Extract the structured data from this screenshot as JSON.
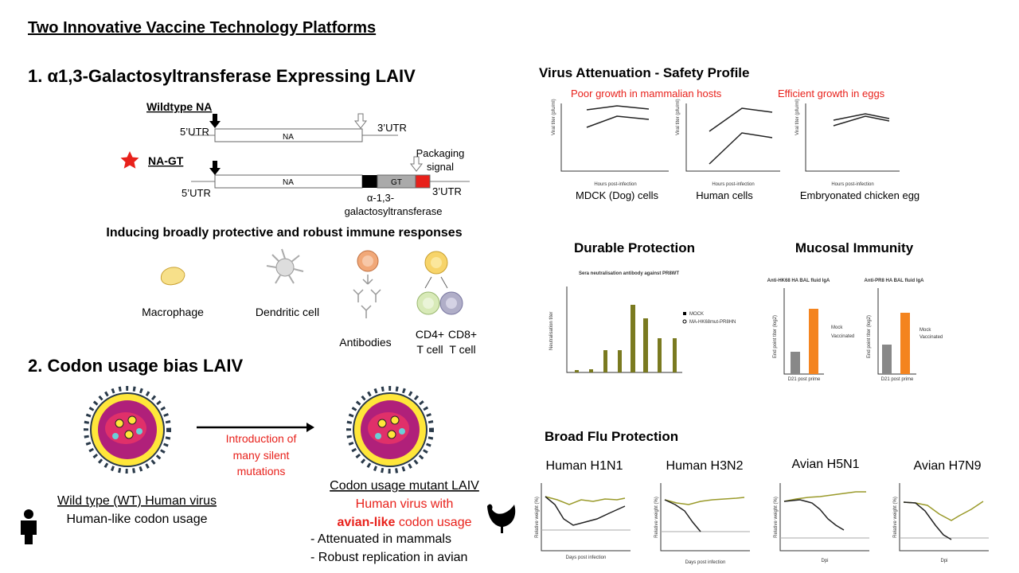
{
  "title": "Two Innovative Vaccine Technology Platforms",
  "section1": {
    "heading": "1. α1,3-Galactosyltransferase Expressing LAIV",
    "wildtype_label": "Wildtype NA",
    "utr5": "5’UTR",
    "na": "NA",
    "utr3": "3’UTR",
    "ngt_label": "NA-GT",
    "gt": "GT",
    "packaging": [
      "Packaging",
      "signal"
    ],
    "enzyme": [
      "α-1,3-",
      "galactosyltransferase"
    ],
    "immune_heading": "Inducing broadly protective and robust immune responses",
    "cells": {
      "macrophage": "Macrophage",
      "dendritic": "Dendritic cell",
      "antibodies": "Antibodies",
      "cd4": [
        "CD4+",
        "T cell"
      ],
      "cd8": [
        "CD8+",
        "T cell"
      ]
    }
  },
  "section2": {
    "heading": "2. Codon usage bias LAIV",
    "arrow_label": [
      "Introduction of",
      "many silent",
      "mutations"
    ],
    "wt_title": "Wild type (WT) Human virus",
    "wt_desc": "Human-like codon usage",
    "mutant_title": "Codon usage mutant LAIV",
    "mutant_line1": "Human virus with",
    "mutant_bold": "avian-like",
    "mutant_rest": " codon usage",
    "points": [
      "- Attenuated in mammals",
      "- Robust replication in avian"
    ]
  },
  "safety": {
    "title": "Virus Attenuation - Safety Profile",
    "note_mammal": "Poor growth in mammalian hosts",
    "note_egg": "Efficient growth in eggs",
    "captions": [
      "MDCK (Dog) cells",
      "Human cells",
      "Embryonated chicken egg"
    ],
    "ylabel": "Viral titer (pfu/ml)",
    "xlabel": "Hours post-infection"
  },
  "durable": {
    "title": "Durable Protection",
    "chart_title": "Sera neutralisation antibody against PR8WT",
    "legend": [
      "MOCK",
      "MA-HK68mut-PR8HN"
    ],
    "ylabel": "Neutralisation titer"
  },
  "mucosal": {
    "title": "Mucosal Immunity",
    "panel_titles": [
      "Anti-HK68 HA BAL fluid IgA",
      "Anti-PR8 HA BAL fluid IgA"
    ],
    "legend": [
      "Mock",
      "Vaccinated"
    ],
    "xlabel": "D21 post prime",
    "ylabel": "End point titer (log2)"
  },
  "broad": {
    "title": "Broad Flu Protection",
    "panels": [
      {
        "name": "Human H1N1",
        "xlabel": "Days post infection"
      },
      {
        "name": "Human H3N2",
        "xlabel": "Days post infection"
      },
      {
        "name": "Avian H5N1",
        "xlabel": "Dpi"
      },
      {
        "name": "Avian H7N9",
        "xlabel": "Dpi"
      }
    ],
    "ylabel": "Relative weight (%)"
  }
}
